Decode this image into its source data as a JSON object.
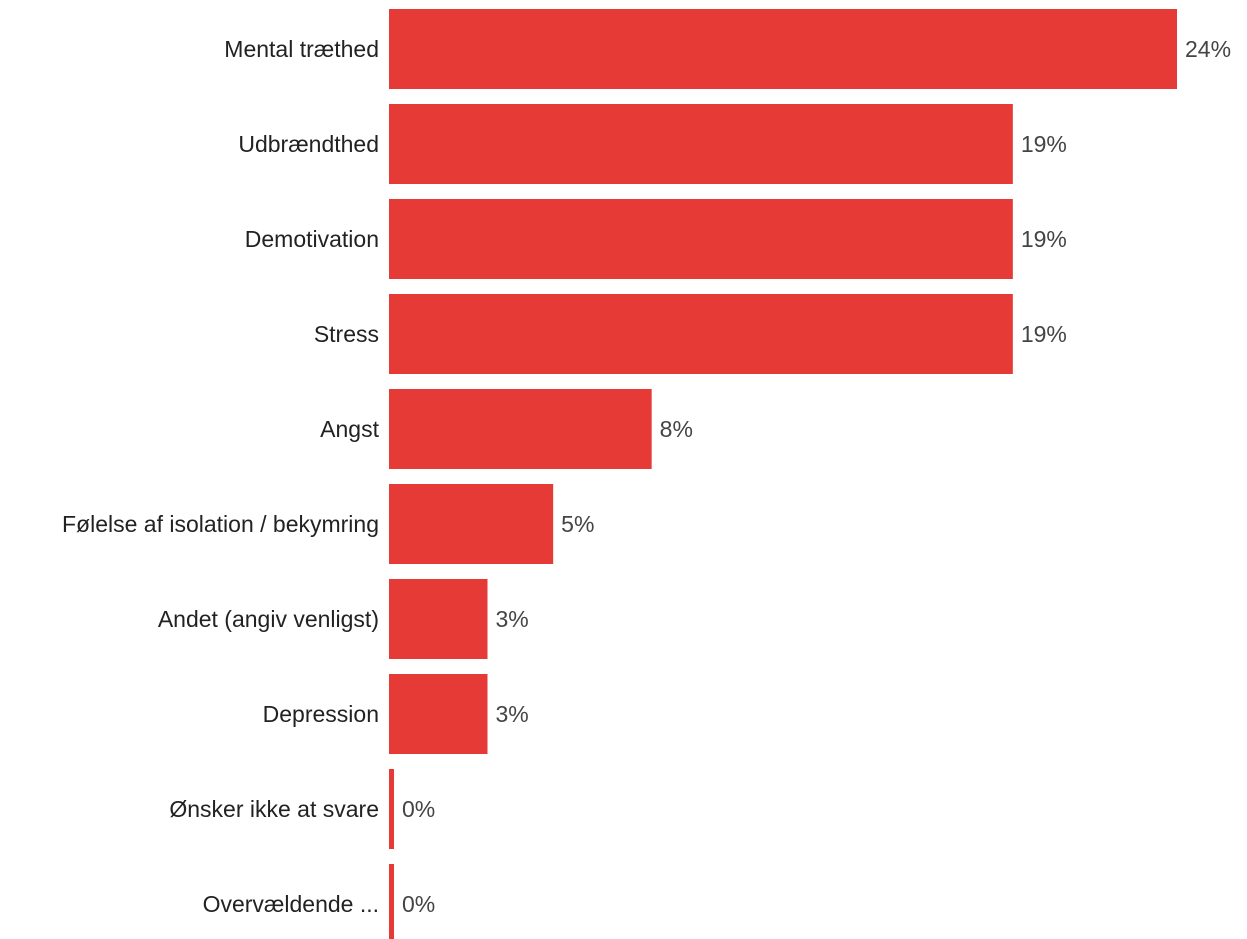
{
  "chart_data": {
    "type": "bar",
    "orientation": "horizontal",
    "title": "",
    "xlabel": "",
    "ylabel": "",
    "categories": [
      "Mental træthed",
      "Udbrændthed",
      "Demotivation",
      "Stress",
      "Angst",
      "Følelse af isolation / bekymring",
      "Andet (angiv venligst)",
      "Depression",
      "Ønsker ikke at svare",
      "Overvældende ..."
    ],
    "values": [
      24,
      19,
      19,
      19,
      8,
      5,
      3,
      3,
      0,
      0
    ],
    "value_labels": [
      "24%",
      "19%",
      "19%",
      "19%",
      "8%",
      "5%",
      "3%",
      "3%",
      "0%",
      "0%"
    ],
    "xlim": [
      0,
      24
    ],
    "grid": false,
    "legend": "none",
    "colors": {
      "bar": "#e53a35",
      "category_text": "#222222",
      "value_text": "#444444"
    }
  }
}
